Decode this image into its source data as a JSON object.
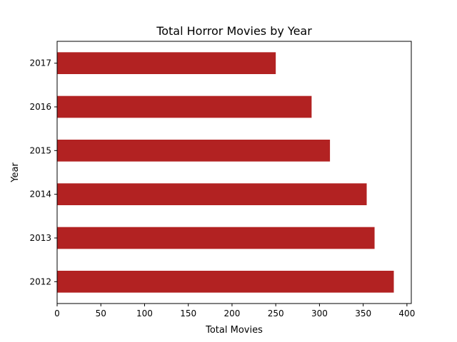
{
  "chart_data": {
    "type": "bar",
    "orientation": "horizontal",
    "title": "Total Horror Movies by Year",
    "xlabel": "Total Movies",
    "ylabel": "Year",
    "categories": [
      "2012",
      "2013",
      "2014",
      "2015",
      "2016",
      "2017"
    ],
    "values": [
      385,
      363,
      354,
      312,
      291,
      250
    ],
    "xlim": [
      0,
      405
    ],
    "xticks": [
      0,
      50,
      100,
      150,
      200,
      250,
      300,
      350,
      400
    ],
    "grid": false,
    "bar_color": "#b22222"
  }
}
